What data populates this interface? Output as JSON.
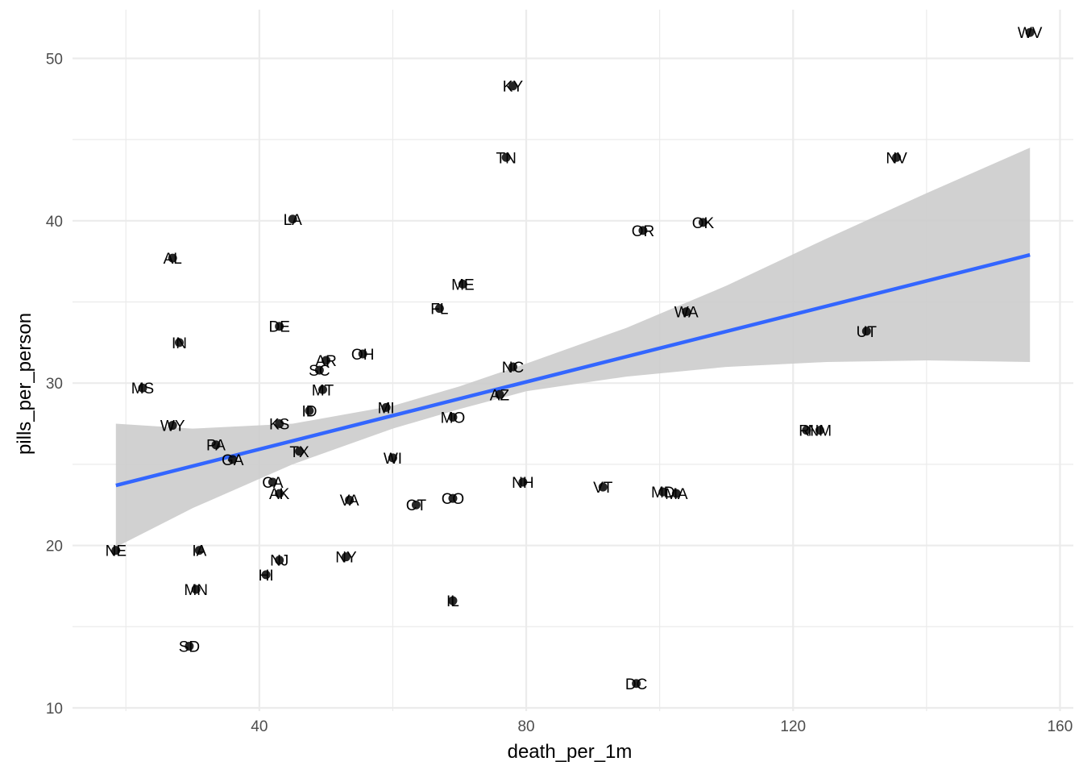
{
  "chart_data": {
    "type": "scatter",
    "title": "",
    "xlabel": "death_per_1m",
    "ylabel": "pills_per_person",
    "xlim": [
      12,
      162
    ],
    "ylim": [
      9.8,
      53
    ],
    "x_ticks": [
      40,
      80,
      120,
      160
    ],
    "y_ticks": [
      10,
      20,
      30,
      40,
      50
    ],
    "grid": true,
    "legend": "none",
    "points": [
      {
        "label": "WV",
        "x": 155.5,
        "y": 51.6
      },
      {
        "label": "KY",
        "x": 78.0,
        "y": 48.3
      },
      {
        "label": "TN",
        "x": 77.0,
        "y": 43.9
      },
      {
        "label": "NV",
        "x": 135.5,
        "y": 43.9
      },
      {
        "label": "LA",
        "x": 45.0,
        "y": 40.1
      },
      {
        "label": "OR",
        "x": 97.5,
        "y": 39.4
      },
      {
        "label": "OK",
        "x": 106.5,
        "y": 39.9
      },
      {
        "label": "AL",
        "x": 27.0,
        "y": 37.7
      },
      {
        "label": "ME",
        "x": 70.5,
        "y": 36.1
      },
      {
        "label": "FL",
        "x": 67.0,
        "y": 34.6
      },
      {
        "label": "WA",
        "x": 104.0,
        "y": 34.4
      },
      {
        "label": "DE",
        "x": 43.0,
        "y": 33.5
      },
      {
        "label": "UT",
        "x": 131.0,
        "y": 33.2
      },
      {
        "label": "IN",
        "x": 28.0,
        "y": 32.5
      },
      {
        "label": "OH",
        "x": 55.5,
        "y": 31.8
      },
      {
        "label": "AR",
        "x": 50.0,
        "y": 31.4
      },
      {
        "label": "SC",
        "x": 49.0,
        "y": 30.8
      },
      {
        "label": "NC",
        "x": 78.0,
        "y": 31.0
      },
      {
        "label": "MS",
        "x": 22.5,
        "y": 29.7
      },
      {
        "label": "MT",
        "x": 49.5,
        "y": 29.6
      },
      {
        "label": "AZ",
        "x": 76.0,
        "y": 29.3
      },
      {
        "label": "MI",
        "x": 59.0,
        "y": 28.5
      },
      {
        "label": "ID",
        "x": 47.5,
        "y": 28.3
      },
      {
        "label": "MO",
        "x": 69.0,
        "y": 27.9
      },
      {
        "label": "KS",
        "x": 43.0,
        "y": 27.5
      },
      {
        "label": "WY",
        "x": 27.0,
        "y": 27.4
      },
      {
        "label": "RI",
        "x": 122.0,
        "y": 27.1
      },
      {
        "label": "NM",
        "x": 124.0,
        "y": 27.1
      },
      {
        "label": "PA",
        "x": 33.5,
        "y": 26.2
      },
      {
        "label": "TX",
        "x": 46.0,
        "y": 25.8
      },
      {
        "label": "GA",
        "x": 36.0,
        "y": 25.3
      },
      {
        "label": "WI",
        "x": 60.0,
        "y": 25.4
      },
      {
        "label": "CA",
        "x": 42.0,
        "y": 23.9
      },
      {
        "label": "NH",
        "x": 79.5,
        "y": 23.9
      },
      {
        "label": "VT",
        "x": 91.5,
        "y": 23.6
      },
      {
        "label": "MD",
        "x": 100.5,
        "y": 23.3
      },
      {
        "label": "MA",
        "x": 102.5,
        "y": 23.2
      },
      {
        "label": "AK",
        "x": 43.0,
        "y": 23.2
      },
      {
        "label": "CO",
        "x": 69.0,
        "y": 22.9
      },
      {
        "label": "VA",
        "x": 53.5,
        "y": 22.8
      },
      {
        "label": "CT",
        "x": 63.5,
        "y": 22.5
      },
      {
        "label": "NE",
        "x": 18.5,
        "y": 19.7
      },
      {
        "label": "IA",
        "x": 31.0,
        "y": 19.7
      },
      {
        "label": "NY",
        "x": 53.0,
        "y": 19.3
      },
      {
        "label": "NJ",
        "x": 43.0,
        "y": 19.1
      },
      {
        "label": "HI",
        "x": 41.0,
        "y": 18.2
      },
      {
        "label": "MN",
        "x": 30.5,
        "y": 17.3
      },
      {
        "label": "IL",
        "x": 69.0,
        "y": 16.6
      },
      {
        "label": "SD",
        "x": 29.5,
        "y": 13.8
      },
      {
        "label": "DC",
        "x": 96.5,
        "y": 11.5
      }
    ],
    "trend_line": {
      "color": "#3366ff",
      "x": [
        18.5,
        155.5
      ],
      "y": [
        23.7,
        37.9
      ]
    },
    "confidence_band": {
      "color": "#cccccc",
      "x": [
        18.5,
        30,
        45,
        60,
        70,
        80,
        95,
        110,
        125,
        140,
        155.5
      ],
      "lower": [
        19.9,
        22.3,
        25.0,
        27.2,
        28.4,
        29.5,
        30.4,
        31.0,
        31.3,
        31.4,
        31.3
      ],
      "upper": [
        27.5,
        27.2,
        27.5,
        28.6,
        29.8,
        31.2,
        33.4,
        36.0,
        38.9,
        41.7,
        44.5
      ]
    },
    "colors": {
      "point": "#000000",
      "grid": "#ebebeb",
      "background": "#ffffff"
    }
  }
}
